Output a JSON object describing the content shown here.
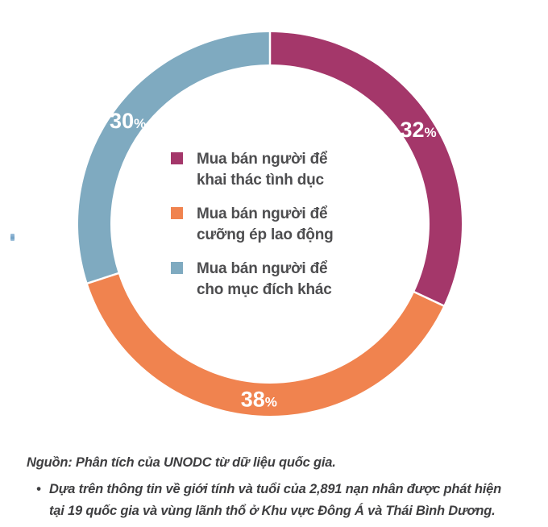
{
  "chart_data": {
    "type": "pie",
    "donut": true,
    "title": "",
    "series": [
      {
        "name": "Mua bán người để khai thác tình dục",
        "value": 32,
        "color": "#A4376A",
        "slice_label": "32%",
        "label_lines": [
          "Mua bán người để",
          "khai thác tình dục"
        ]
      },
      {
        "name": "Mua bán người để cưỡng ép lao động",
        "value": 38,
        "color": "#F0834F",
        "slice_label": "38%",
        "label_lines": [
          "Mua bán người để",
          "cưỡng ép lao động"
        ]
      },
      {
        "name": "Mua bán người để cho mục đích khác",
        "value": 30,
        "color": "#7FAAC0",
        "slice_label": "30%",
        "label_lines": [
          "Mua bán người để",
          "cho mục đích khác"
        ]
      }
    ],
    "percent_sign": "%",
    "start_angle_deg": 0,
    "direction": "clockwise",
    "layout": {
      "center": [
        335,
        278
      ],
      "outer_radius": 238,
      "inner_radius": 198,
      "label_radius": 218,
      "separator_color": "#FFFFFF",
      "separator_width": 2.5,
      "legend_position": "center",
      "slice_label_color": "#FFFFFF",
      "value_font_px": 27,
      "percent_font_px": 17
    }
  },
  "source_note": {
    "line1": "Nguồn: Phân tích của UNODC từ dữ liệu quốc gia.",
    "bullet": "•",
    "bullet_line1": "Dựa trên thông tin về giới tính và tuổi của 2,891 nạn nhân được phát hiện",
    "bullet_line2": "tại 19 quốc gia và vùng lãnh thổ ở Khu vực Đông Á và Thái Bình Dương."
  }
}
